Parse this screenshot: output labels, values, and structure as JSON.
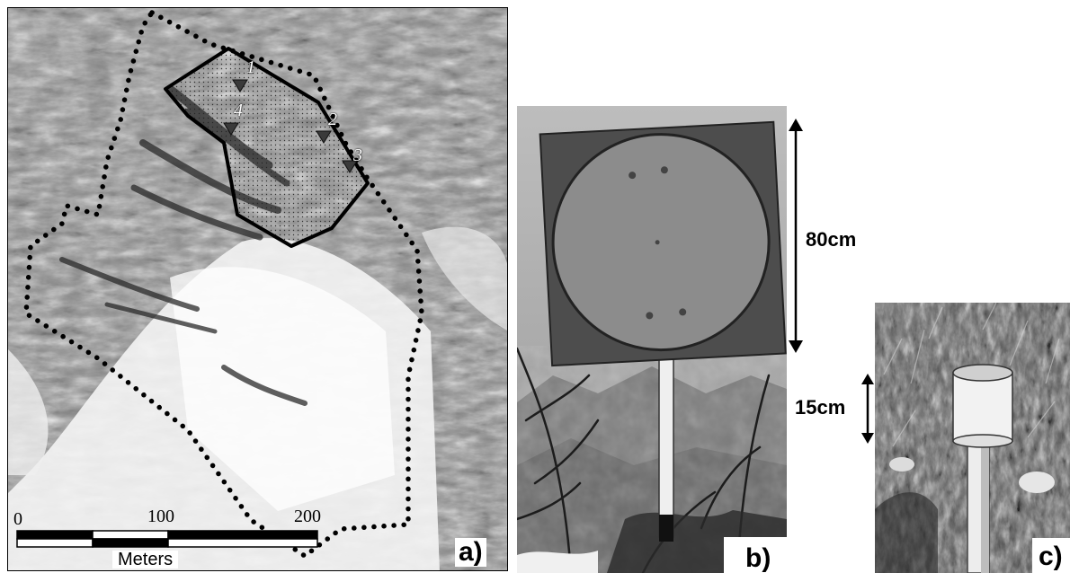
{
  "panel_a": {
    "label": "a)",
    "markers": [
      "1",
      "2",
      "3",
      "4"
    ],
    "scale_bar": {
      "ticks": [
        "0",
        "100",
        "200"
      ],
      "unit": "Meters"
    }
  },
  "panel_b": {
    "label": "b)",
    "dimension": "80cm"
  },
  "panel_c": {
    "label": "c)",
    "dimension": "15cm"
  }
}
